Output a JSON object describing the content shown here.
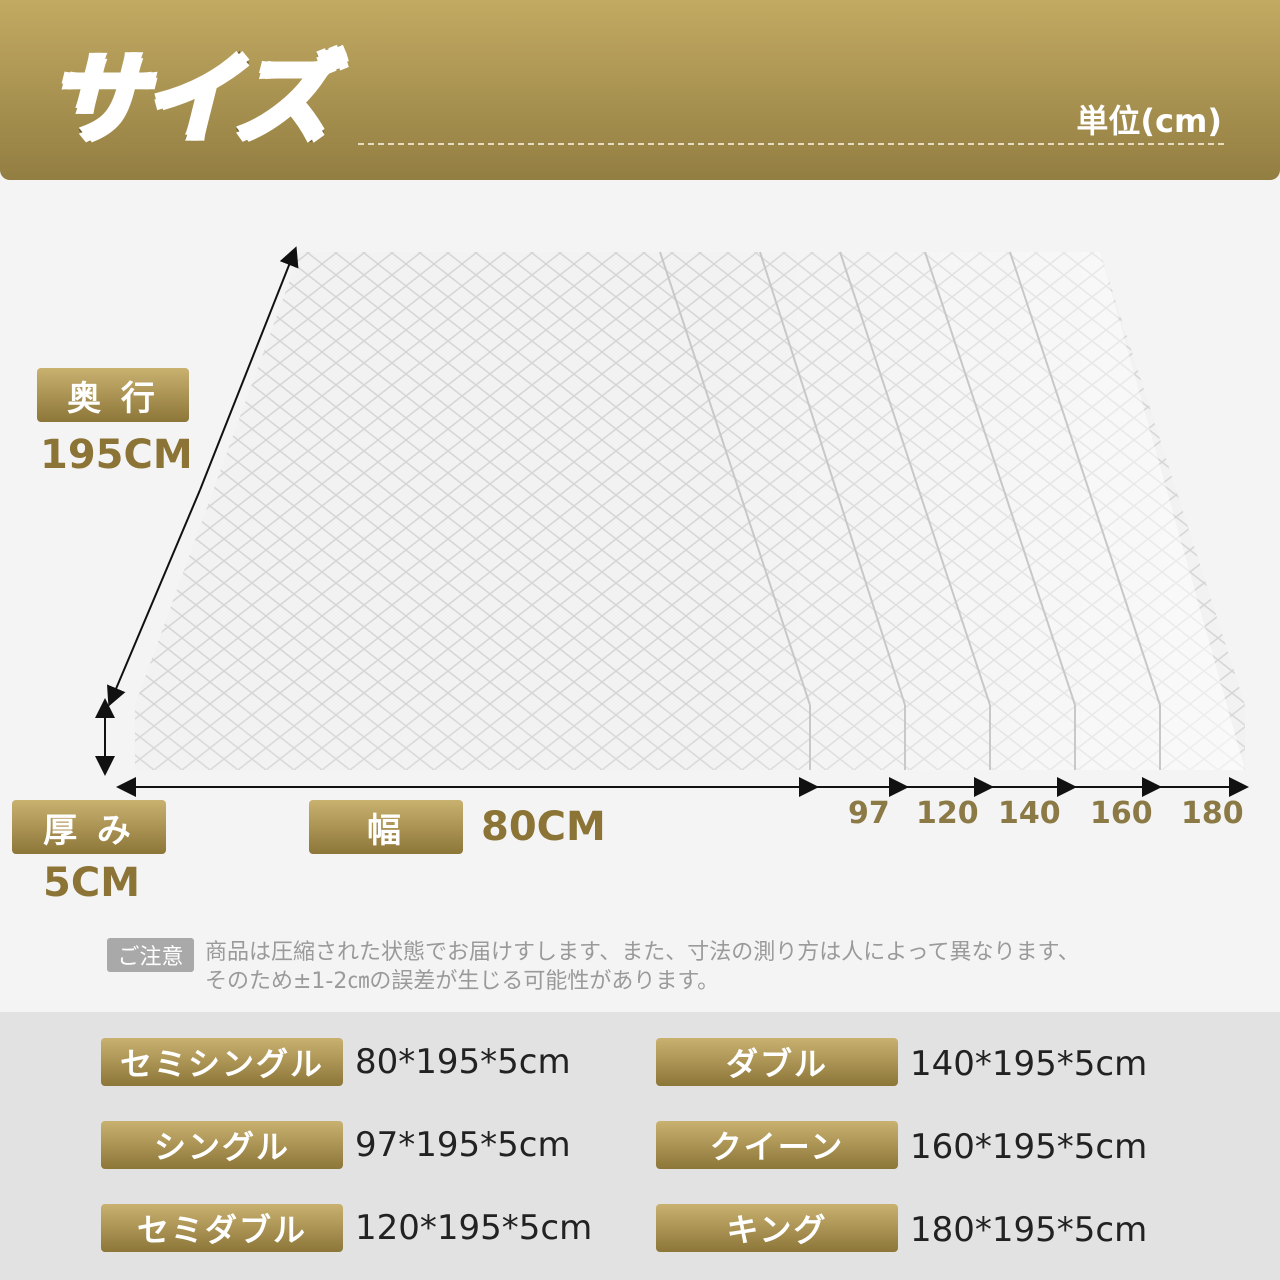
{
  "header": {
    "title": "サイズ",
    "unit": "単位(cm)"
  },
  "diagram": {
    "depth_label": "奥 行",
    "depth_value": "195CM",
    "thickness_label": "厚 み",
    "thickness_value": "5CM",
    "width_label": "幅",
    "width_value": "80CM",
    "width_steps": [
      "97",
      "120",
      "140",
      "160",
      "180"
    ]
  },
  "note": {
    "tag": "ご注意",
    "line1": "商品は圧縮された状態でお届けすします、また、寸法の測り方は人によって異なります、",
    "line2": "そのため±1-2㎝の誤差が生じる可能性があります。"
  },
  "colors": {
    "gold_top": "#c2aa62",
    "gold_bottom": "#937e42",
    "text_gold": "#8b7436"
  },
  "sizes": [
    {
      "name": "セミシングル",
      "dims": "80*195*5cm"
    },
    {
      "name": "シングル",
      "dims": "97*195*5cm"
    },
    {
      "name": "セミダブル",
      "dims": "120*195*5cm"
    },
    {
      "name": "ダブル",
      "dims": "140*195*5cm"
    },
    {
      "name": "クイーン",
      "dims": "160*195*5cm"
    },
    {
      "name": "キング",
      "dims": "180*195*5cm"
    }
  ]
}
